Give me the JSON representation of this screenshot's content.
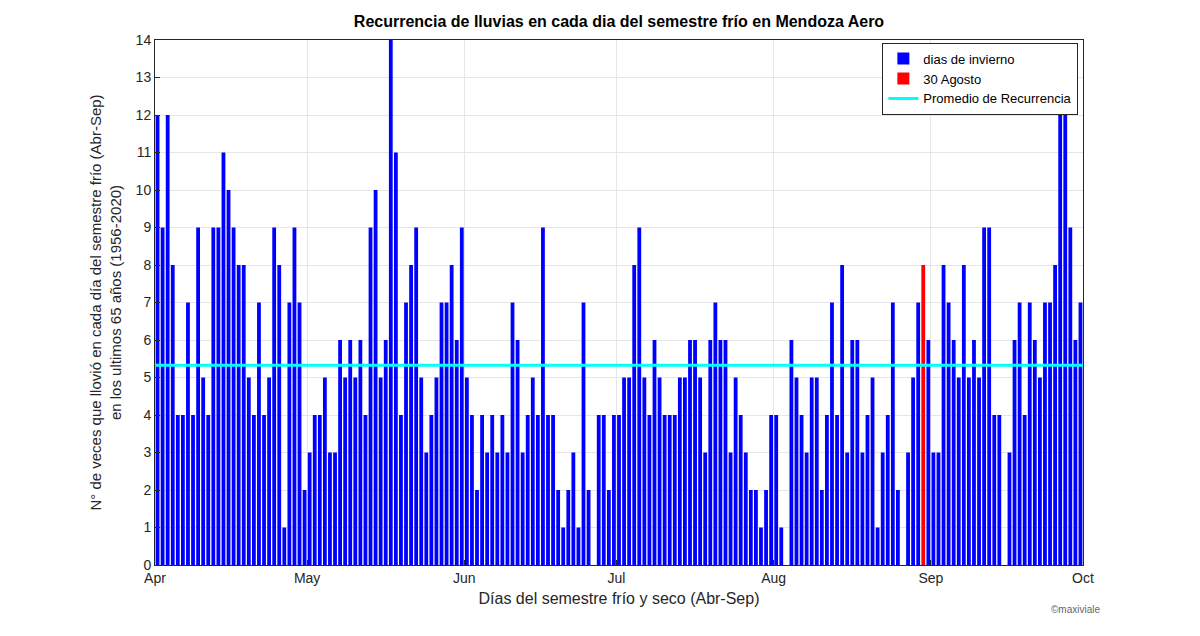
{
  "chart_data": {
    "type": "bar",
    "title": "Recurrencia de lluvias en cada dia del semestre frío en Mendoza Aero",
    "xlabel": "Días del semestre frío y seco (Abr-Sep)",
    "ylabel": [
      "N° de veces que llovió en cada día del semestre frío (Abr-Sep)",
      "en los ultimos 65 años (1956-2020)"
    ],
    "annotations": [
      {
        "text": "©maxiviale"
      }
    ],
    "x": [
      1,
      2,
      3,
      4,
      5,
      6,
      7,
      8,
      9,
      10,
      11,
      12,
      13,
      14,
      15,
      16,
      17,
      18,
      19,
      20,
      21,
      22,
      23,
      24,
      25,
      26,
      27,
      28,
      29,
      30,
      31,
      32,
      33,
      34,
      35,
      36,
      37,
      38,
      39,
      40,
      41,
      42,
      43,
      44,
      45,
      46,
      47,
      48,
      49,
      50,
      51,
      52,
      53,
      54,
      55,
      56,
      57,
      58,
      59,
      60,
      61,
      62,
      63,
      64,
      65,
      66,
      67,
      68,
      69,
      70,
      71,
      72,
      73,
      74,
      75,
      76,
      77,
      78,
      79,
      80,
      81,
      82,
      83,
      84,
      85,
      86,
      87,
      88,
      89,
      90,
      91,
      92,
      93,
      94,
      95,
      96,
      97,
      98,
      99,
      100,
      101,
      102,
      103,
      104,
      105,
      106,
      107,
      108,
      109,
      110,
      111,
      112,
      113,
      114,
      115,
      116,
      117,
      118,
      119,
      120,
      121,
      122,
      123,
      124,
      125,
      126,
      127,
      128,
      129,
      130,
      131,
      132,
      133,
      134,
      135,
      136,
      137,
      138,
      139,
      140,
      141,
      142,
      143,
      144,
      145,
      146,
      147,
      148,
      149,
      150,
      151,
      152,
      153,
      154,
      155,
      156,
      157,
      158,
      159,
      160,
      161,
      162,
      163,
      164,
      165,
      166,
      167,
      168,
      169,
      170,
      171,
      172,
      173,
      174,
      175,
      176,
      177,
      178,
      179,
      180,
      181,
      182,
      183
    ],
    "series": [
      {
        "name": "dias de invierno",
        "color": "#0000ff",
        "values": [
          12,
          9,
          12,
          8,
          4,
          4,
          7,
          4,
          9,
          5,
          4,
          9,
          9,
          11,
          10,
          9,
          8,
          8,
          5,
          4,
          7,
          4,
          5,
          9,
          8,
          1,
          7,
          9,
          7,
          2,
          3,
          4,
          4,
          5,
          3,
          3,
          6,
          5,
          6,
          5,
          6,
          4,
          9,
          10,
          5,
          6,
          14,
          11,
          4,
          7,
          8,
          9,
          5,
          3,
          4,
          5,
          7,
          7,
          8,
          6,
          9,
          5,
          4,
          2,
          4,
          3,
          4,
          3,
          4,
          3,
          7,
          6,
          3,
          4,
          5,
          4,
          9,
          4,
          4,
          2,
          1,
          2,
          3,
          1,
          7,
          2,
          0,
          4,
          4,
          2,
          4,
          4,
          5,
          5,
          8,
          9,
          5,
          4,
          6,
          5,
          4,
          4,
          4,
          5,
          5,
          6,
          6,
          5,
          3,
          6,
          7,
          6,
          6,
          3,
          5,
          4,
          3,
          2,
          2,
          1,
          2,
          4,
          4,
          1,
          0,
          6,
          5,
          4,
          3,
          5,
          5,
          2,
          4,
          7,
          4,
          8,
          3,
          6,
          6,
          3,
          4,
          5,
          1,
          3,
          4,
          7,
          2,
          0,
          3,
          5,
          7,
          null,
          6,
          3,
          3,
          8,
          7,
          6,
          5,
          8,
          5,
          6,
          5,
          9,
          9,
          4,
          4,
          0,
          3,
          6,
          7,
          4,
          7,
          6,
          5,
          7,
          7,
          8,
          12,
          12,
          9,
          6,
          7
        ]
      },
      {
        "name": "30 Agosto",
        "color": "#ff0000",
        "x": [
          152
        ],
        "values": [
          8
        ]
      },
      {
        "name": "Promedio de Recurrencia",
        "type": "line",
        "color": "#00ffff",
        "x": [
          0.5,
          183.5
        ],
        "values": [
          5.33,
          5.33
        ]
      }
    ],
    "xlim": [
      0.5,
      183.5
    ],
    "xticks": [
      {
        "value": 0.5,
        "label": "Apr"
      },
      {
        "value": 30.5,
        "label": "May"
      },
      {
        "value": 61.5,
        "label": "Jun"
      },
      {
        "value": 91.5,
        "label": "Jul"
      },
      {
        "value": 122.5,
        "label": "Aug"
      },
      {
        "value": 153.5,
        "label": "Sep"
      },
      {
        "value": 183.5,
        "label": "Oct"
      }
    ],
    "ylim": [
      0,
      14
    ],
    "yticks": [
      0,
      1,
      2,
      3,
      4,
      5,
      6,
      7,
      8,
      9,
      10,
      11,
      12,
      13,
      14
    ],
    "grid": true,
    "legend": "upper right"
  }
}
